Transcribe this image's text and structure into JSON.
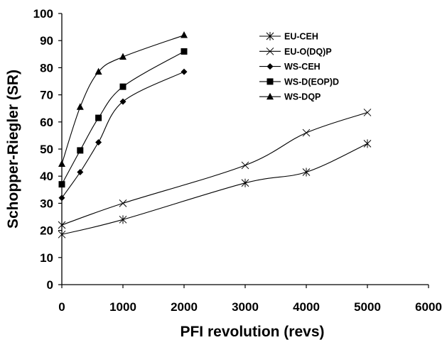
{
  "chart_data": {
    "type": "line",
    "xlabel": "PFI revolution (revs)",
    "ylabel": "Schopper-Riegler (SR)",
    "xlim": [
      0,
      6000
    ],
    "ylim": [
      0,
      100
    ],
    "xticks": [
      0,
      1000,
      2000,
      3000,
      4000,
      5000,
      6000
    ],
    "yticks": [
      0,
      10,
      20,
      30,
      40,
      50,
      60,
      70,
      80,
      90,
      100
    ],
    "grid": false,
    "legend_position": "top-right",
    "series": [
      {
        "name": "EU-CEH",
        "marker": "asterisk",
        "x": [
          0,
          1000,
          3000,
          4000,
          5000
        ],
        "y": [
          18.5,
          24,
          37.5,
          41.5,
          52
        ]
      },
      {
        "name": "EU-O(DQ)P",
        "marker": "x",
        "x": [
          0,
          1000,
          3000,
          4000,
          5000
        ],
        "y": [
          22,
          30,
          44,
          56,
          63.5
        ]
      },
      {
        "name": "WS-CEH",
        "marker": "diamond",
        "x": [
          0,
          300,
          600,
          1000,
          2000
        ],
        "y": [
          32,
          41.5,
          52.5,
          67.5,
          78.5
        ]
      },
      {
        "name": "WS-D(EOP)D",
        "marker": "square",
        "x": [
          0,
          300,
          600,
          1000,
          2000
        ],
        "y": [
          37,
          49.5,
          61.5,
          73,
          86
        ]
      },
      {
        "name": "WS-DQP",
        "marker": "triangle",
        "x": [
          0,
          300,
          600,
          1000,
          2000
        ],
        "y": [
          44.5,
          65.5,
          78.5,
          84,
          92
        ]
      }
    ]
  }
}
